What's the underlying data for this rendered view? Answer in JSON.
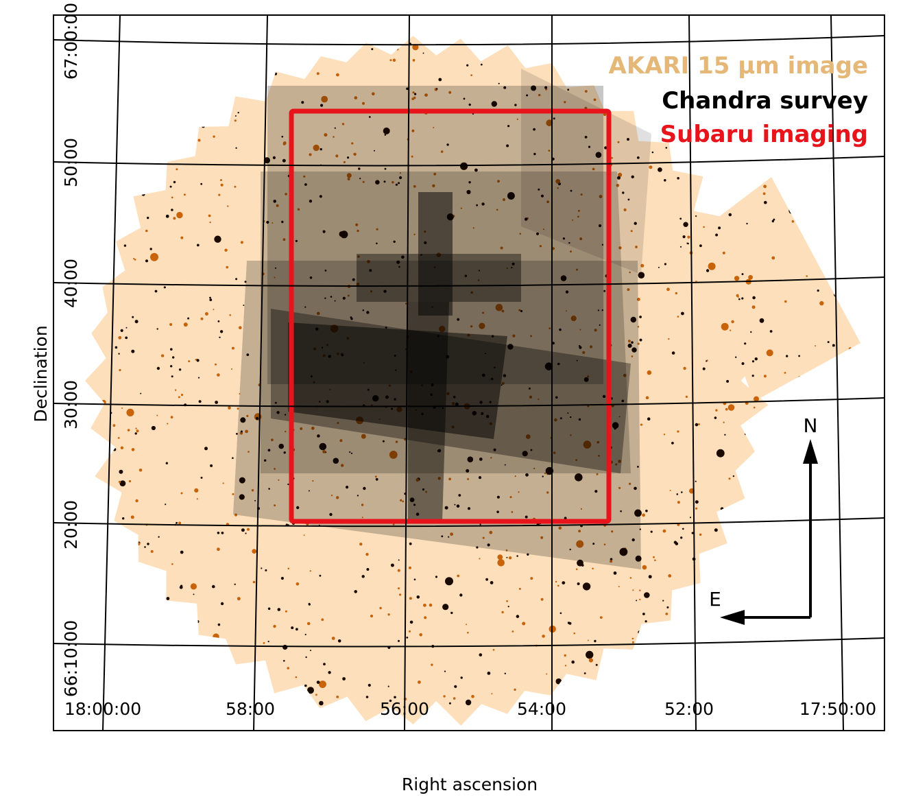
{
  "x_axis": {
    "label": "Right ascension",
    "ticks": [
      "18:00:00",
      "58:00",
      "56:00",
      "54:00",
      "52:00",
      "17:50:00"
    ]
  },
  "y_axis": {
    "label": "Declination",
    "ticks": [
      "67:00:00",
      "50:00",
      "40:00",
      "30:00",
      "20:00",
      "66:10:00"
    ]
  },
  "legend": [
    {
      "text": "AKARI 15 μm image",
      "color": "#e5b878"
    },
    {
      "text": "Chandra survey",
      "color": "#000000"
    },
    {
      "text": "Subaru imaging",
      "color": "#e8141b"
    }
  ],
  "compass": {
    "north": "N",
    "east": "E"
  }
}
